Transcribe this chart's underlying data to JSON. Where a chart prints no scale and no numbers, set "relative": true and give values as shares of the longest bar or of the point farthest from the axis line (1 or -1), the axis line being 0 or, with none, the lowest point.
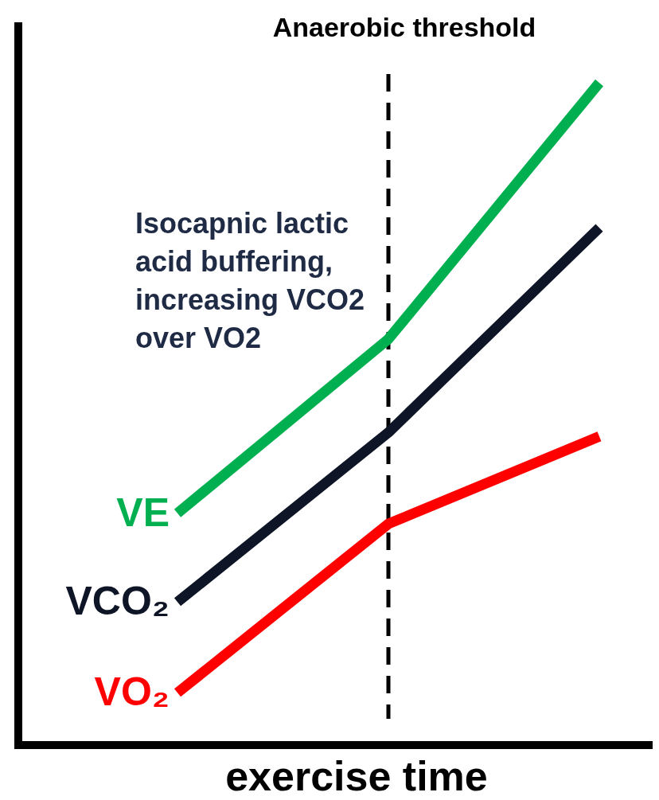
{
  "chart_data": {
    "type": "line",
    "relative": true,
    "xlabel": "exercise time",
    "categories": [
      null,
      null,
      null
    ],
    "series": [
      {
        "name": "VE",
        "color": "#00b050",
        "values": [
          0.35,
          0.613,
          1
        ]
      },
      {
        "name": "VCO₂",
        "color": "#0d1526",
        "values": [
          0.216,
          0.472,
          0.781
        ]
      },
      {
        "name": "VO₂",
        "color": "#ff0000",
        "values": [
          0.079,
          0.334,
          0.466
        ]
      }
    ],
    "annotations": [
      "Anaerobic threshold",
      "Isocapnic lactic acid buffering, increasing VCO2 over VO2"
    ],
    "legend": false,
    "marker": "none",
    "line_style": "solid"
  }
}
